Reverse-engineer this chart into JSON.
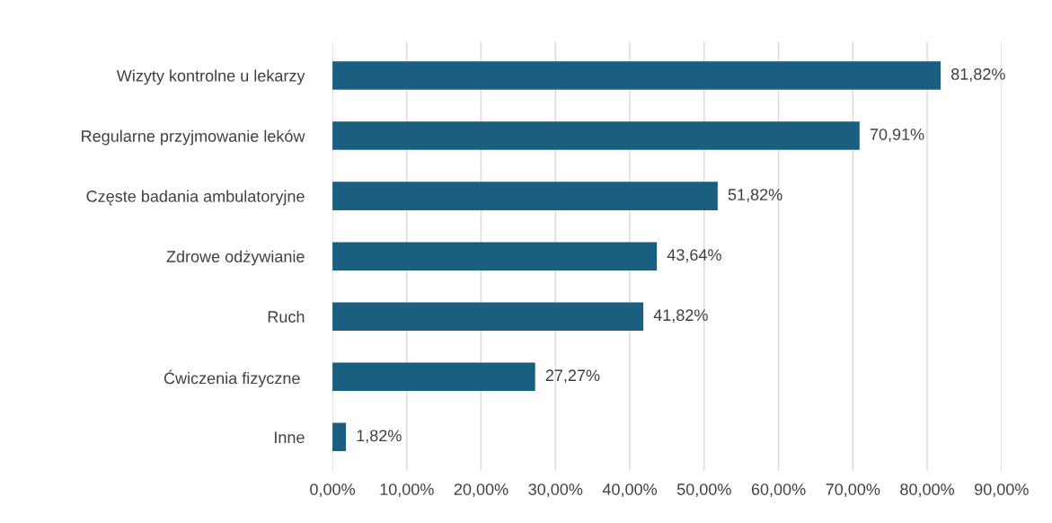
{
  "chart_data": {
    "type": "bar",
    "orientation": "horizontal",
    "categories": [
      "Wizyty kontrolne u lekarzy",
      "Regularne przyjmowanie leków",
      "Częste badania ambulatoryjne",
      "Zdrowe odżywianie",
      "Ruch",
      "Ćwiczenia fizyczne ",
      "Inne"
    ],
    "values": [
      81.82,
      70.91,
      51.82,
      43.64,
      41.82,
      27.27,
      1.82
    ],
    "value_labels": [
      "81,82%",
      "70,91%",
      "51,82%",
      "43,64%",
      "41,82%",
      "27,27%",
      "1,82%"
    ],
    "color": "#1b5f80",
    "xlim": [
      0,
      90
    ],
    "xticks": [
      {
        "value": 0,
        "label": "0,00%"
      },
      {
        "value": 10,
        "label": "10,00%"
      },
      {
        "value": 20,
        "label": "20,00%"
      },
      {
        "value": 30,
        "label": "30,00%"
      },
      {
        "value": 40,
        "label": "40,00%"
      },
      {
        "value": 50,
        "label": "50,00%"
      },
      {
        "value": 60,
        "label": "60,00%"
      },
      {
        "value": 70,
        "label": "70,00%"
      },
      {
        "value": 80,
        "label": "80,00%"
      },
      {
        "value": 90,
        "label": "90,00%"
      }
    ],
    "grid": "x"
  }
}
